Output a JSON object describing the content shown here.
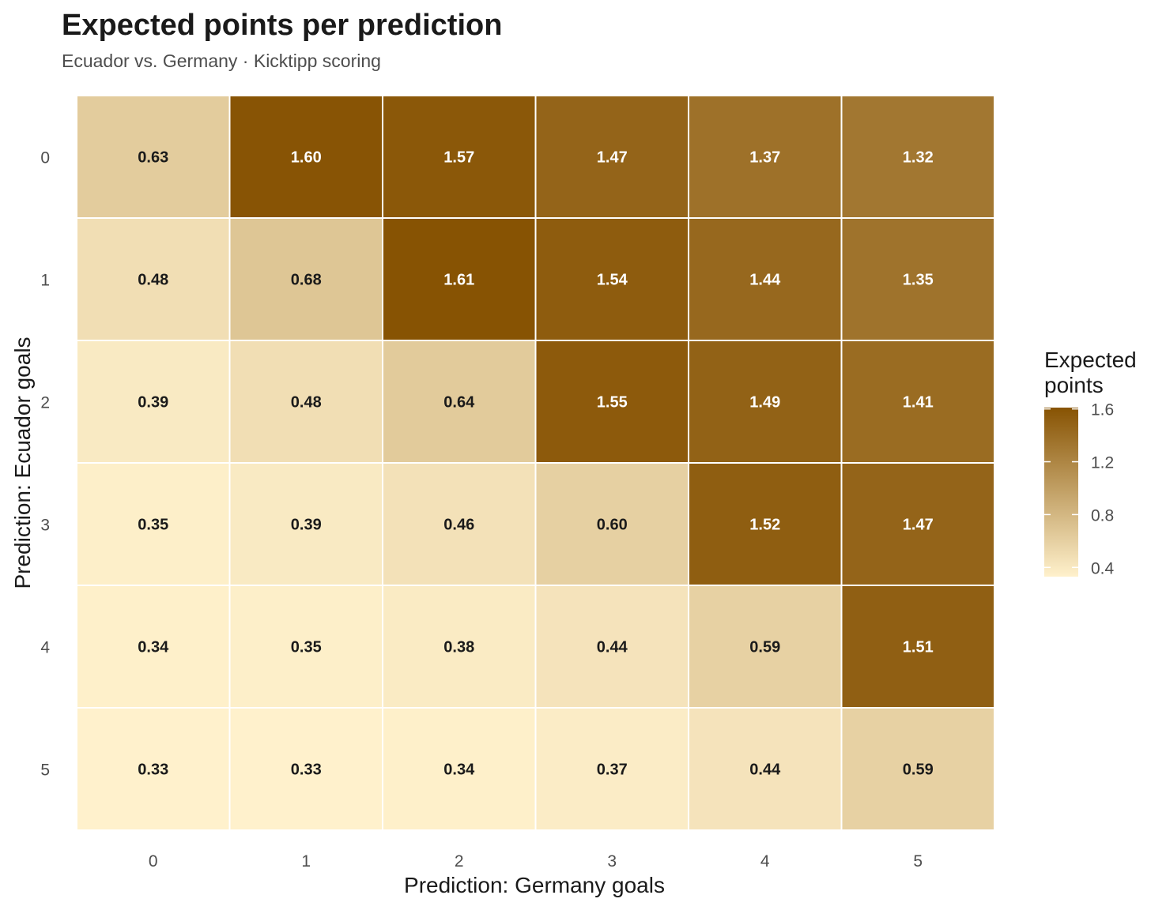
{
  "chart_data": {
    "type": "heatmap",
    "title": "Expected points per prediction",
    "subtitle": "Ecuador vs. Germany · Kicktipp scoring",
    "xlabel": "Prediction: Germany goals",
    "ylabel": "Prediction: Ecuador goals",
    "x_categories": [
      "0",
      "1",
      "2",
      "3",
      "4",
      "5"
    ],
    "y_categories": [
      "0",
      "1",
      "2",
      "3",
      "4",
      "5"
    ],
    "values": [
      [
        0.63,
        1.6,
        1.57,
        1.47,
        1.37,
        1.32
      ],
      [
        0.48,
        0.68,
        1.61,
        1.54,
        1.44,
        1.35
      ],
      [
        0.39,
        0.48,
        0.64,
        1.55,
        1.49,
        1.41
      ],
      [
        0.35,
        0.39,
        0.46,
        0.6,
        1.52,
        1.47
      ],
      [
        0.34,
        0.35,
        0.38,
        0.44,
        0.59,
        1.51
      ],
      [
        0.33,
        0.33,
        0.34,
        0.37,
        0.44,
        0.59
      ]
    ],
    "value_labels": [
      [
        "0.63",
        "1.60",
        "1.57",
        "1.47",
        "1.37",
        "1.32"
      ],
      [
        "0.48",
        "0.68",
        "1.61",
        "1.54",
        "1.44",
        "1.35"
      ],
      [
        "0.39",
        "0.48",
        "0.64",
        "1.55",
        "1.49",
        "1.41"
      ],
      [
        "0.35",
        "0.39",
        "0.46",
        "0.60",
        "1.52",
        "1.47"
      ],
      [
        "0.34",
        "0.35",
        "0.38",
        "0.44",
        "0.59",
        "1.51"
      ],
      [
        "0.33",
        "0.33",
        "0.34",
        "0.37",
        "0.44",
        "0.59"
      ]
    ],
    "legend": {
      "title_lines": [
        "Expected",
        "points"
      ],
      "ticks": [
        1.6,
        1.2,
        0.8,
        0.4
      ],
      "tick_labels": [
        "1.6",
        "1.2",
        "0.8",
        "0.4"
      ],
      "range": [
        0.33,
        1.61
      ],
      "placement": "right"
    },
    "colors": {
      "low": "#fff1cc",
      "high": "#875303",
      "grid": "#ffffff",
      "text_dark": "#1a1a1a",
      "text_light": "#ffffff"
    },
    "grid": false
  }
}
